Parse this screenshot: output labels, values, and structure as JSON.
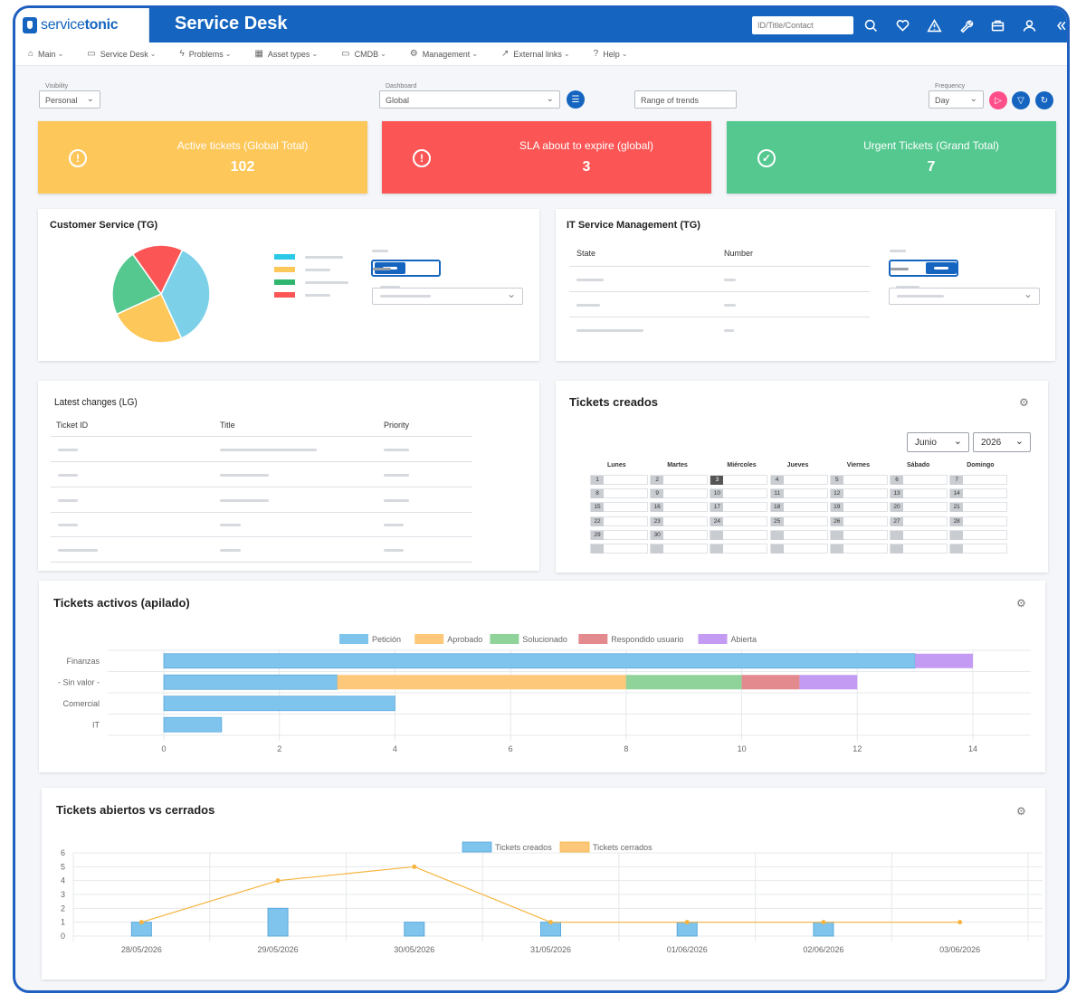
{
  "brand": {
    "logo_prefix": "service",
    "logo_suffix": "tonic",
    "app_title": "Service Desk"
  },
  "topbar": {
    "search_placeholder": "ID/Title/Contact",
    "icons": [
      "search-icon",
      "heart-icon",
      "warning-icon",
      "wrench-icon",
      "briefcase-icon",
      "user-icon",
      "collapse-icon"
    ]
  },
  "menu": [
    {
      "label": "Main",
      "icon": "⌂"
    },
    {
      "label": "Service Desk",
      "icon": "▭"
    },
    {
      "label": "Problems",
      "icon": "ϟ"
    },
    {
      "label": "Asset types",
      "icon": "▦"
    },
    {
      "label": "CMDB",
      "icon": "▭"
    },
    {
      "label": "Management",
      "icon": "⚙"
    },
    {
      "label": "External links",
      "icon": "↗"
    },
    {
      "label": "Help",
      "icon": "?"
    }
  ],
  "filters": {
    "visibility_label": "Visibility",
    "visibility_value": "Personal",
    "dashboard_label": "Dashboard",
    "dashboard_value": "Global",
    "range_placeholder": "Range of trends",
    "frequency_label": "Frequency",
    "frequency_value": "Day"
  },
  "colors": {
    "primary": "#1565c0",
    "card_yellow": "#fdc75a",
    "card_red": "#fb5655",
    "card_green": "#55c890",
    "pink": "#ff4f8b"
  },
  "stats": [
    {
      "title": "Active tickets (Global Total)",
      "value": "102",
      "icon": "!"
    },
    {
      "title": "SLA about to expire (global)",
      "value": "3",
      "icon": "!"
    },
    {
      "title": "Urgent Tickets (Grand Total)",
      "value": "7",
      "icon": "✓"
    }
  ],
  "customer_service": {
    "title": "Customer Service (TG)"
  },
  "it_service": {
    "title": "IT Service Management (TG)",
    "col_state": "State",
    "col_number": "Number"
  },
  "latest_changes": {
    "title": "Latest changes (LG)",
    "col_id": "Ticket ID",
    "col_title": "Title",
    "col_priority": "Priority"
  },
  "tickets_creados": {
    "title": "Tickets creados",
    "month": "Junio",
    "year": "2026",
    "days": [
      "Lunes",
      "Martes",
      "Miércoles",
      "Jueves",
      "Viernes",
      "Sábado",
      "Domingo"
    ],
    "weeks": [
      [
        "1",
        "2",
        "3",
        "4",
        "5",
        "6",
        "7"
      ],
      [
        "8",
        "9",
        "10",
        "11",
        "12",
        "13",
        "14"
      ],
      [
        "15",
        "16",
        "17",
        "18",
        "19",
        "20",
        "21"
      ],
      [
        "22",
        "23",
        "24",
        "25",
        "26",
        "27",
        "28"
      ],
      [
        "29",
        "30",
        "",
        "",
        "",
        "",
        ""
      ],
      [
        "",
        "",
        "",
        "",
        "",
        "",
        ""
      ]
    ],
    "today": "3"
  },
  "chart_data": [
    {
      "type": "bar",
      "orientation": "horizontal",
      "stacked": true,
      "title": "Tickets activos (apilado)",
      "categories": [
        "Finanzas",
        "- Sin valor -",
        "Comercial",
        "IT"
      ],
      "series": [
        {
          "name": "Petición",
          "color": "#7fc4ec",
          "values": [
            13,
            3,
            4,
            1
          ]
        },
        {
          "name": "Aprobado",
          "color": "#fdc87a",
          "values": [
            0,
            5,
            0,
            0
          ]
        },
        {
          "name": "Solucionado",
          "color": "#8fd39a",
          "values": [
            0,
            2,
            0,
            0
          ]
        },
        {
          "name": "Respondido usuario",
          "color": "#e38a8e",
          "values": [
            0,
            1,
            0,
            0
          ]
        },
        {
          "name": "Abierta",
          "color": "#c39bf2",
          "values": [
            1,
            1,
            0,
            0
          ]
        }
      ],
      "xlim": [
        0,
        14
      ],
      "xticks": [
        0,
        2,
        4,
        6,
        8,
        10,
        12,
        14
      ],
      "legend": "top",
      "grid": true
    },
    {
      "type": "bar+line",
      "title": "Tickets abiertos vs cerrados",
      "categories": [
        "28/05/2026",
        "29/05/2026",
        "30/05/2026",
        "31/05/2026",
        "01/06/2026",
        "02/06/2026",
        "03/06/2026"
      ],
      "series": [
        {
          "name": "Tickets creados",
          "type": "bar",
          "color": "#7fc4ec",
          "values": [
            1,
            2,
            1,
            1,
            1,
            1,
            0
          ]
        },
        {
          "name": "Tickets cerrados",
          "type": "line",
          "color": "#f7b440",
          "values": [
            1,
            4,
            5,
            1,
            1,
            1,
            1
          ]
        }
      ],
      "ylim": [
        0,
        6
      ],
      "yticks": [
        0,
        1,
        2,
        3,
        4,
        5,
        6
      ],
      "legend": "top",
      "grid": true
    }
  ],
  "pie": {
    "colors": [
      "#7cd0e8",
      "#fdc75a",
      "#55c890",
      "#fb5655"
    ],
    "fractions": [
      0.36,
      0.25,
      0.22,
      0.17
    ]
  }
}
